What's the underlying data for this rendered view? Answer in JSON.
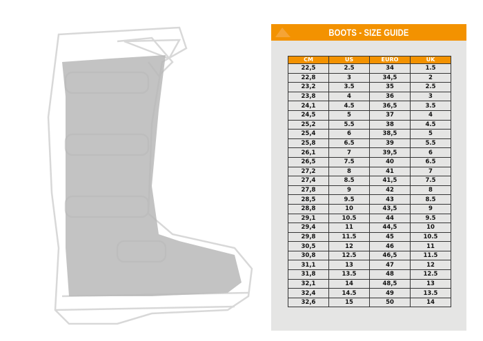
{
  "title": "BOOTS - SIZE GUIDE",
  "brand_color": "#f39200",
  "headers": [
    "CM",
    "US",
    "EURO",
    "UK"
  ],
  "rows": [
    [
      "22,5",
      "2.5",
      "34",
      "1.5"
    ],
    [
      "22,8",
      "3",
      "34,5",
      "2"
    ],
    [
      "23,2",
      "3.5",
      "35",
      "2.5"
    ],
    [
      "23,8",
      "4",
      "36",
      "3"
    ],
    [
      "24,1",
      "4.5",
      "36,5",
      "3.5"
    ],
    [
      "24,5",
      "5",
      "37",
      "4"
    ],
    [
      "25,2",
      "5.5",
      "38",
      "4.5"
    ],
    [
      "25,4",
      "6",
      "38,5",
      "5"
    ],
    [
      "25,8",
      "6.5",
      "39",
      "5.5"
    ],
    [
      "26,1",
      "7",
      "39,5",
      "6"
    ],
    [
      "26,5",
      "7.5",
      "40",
      "6.5"
    ],
    [
      "27,2",
      "8",
      "41",
      "7"
    ],
    [
      "27,4",
      "8.5",
      "41,5",
      "7.5"
    ],
    [
      "27,8",
      "9",
      "42",
      "8"
    ],
    [
      "28,5",
      "9.5",
      "43",
      "8.5"
    ],
    [
      "28,8",
      "10",
      "43,5",
      "9"
    ],
    [
      "29,1",
      "10.5",
      "44",
      "9.5"
    ],
    [
      "29,4",
      "11",
      "44,5",
      "10"
    ],
    [
      "29,8",
      "11.5",
      "45",
      "10.5"
    ],
    [
      "30,5",
      "12",
      "46",
      "11"
    ],
    [
      "30,8",
      "12.5",
      "46,5",
      "11.5"
    ],
    [
      "31,1",
      "13",
      "47",
      "12"
    ],
    [
      "31,8",
      "13.5",
      "48",
      "12.5"
    ],
    [
      "32,1",
      "14",
      "48,5",
      "13"
    ],
    [
      "32,4",
      "14.5",
      "49",
      "13.5"
    ],
    [
      "32,6",
      "15",
      "50",
      "14"
    ]
  ]
}
